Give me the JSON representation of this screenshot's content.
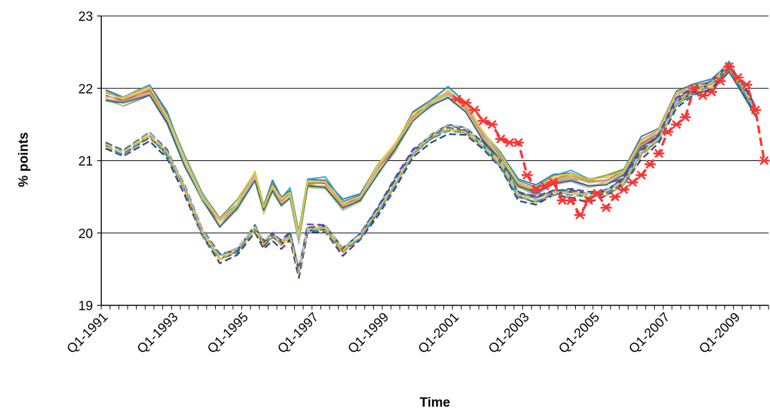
{
  "chart_data": {
    "type": "line",
    "title": "",
    "xlabel": "Time",
    "ylabel": "% points",
    "ylim": [
      19,
      23
    ],
    "yticks": [
      19,
      20,
      21,
      22,
      23
    ],
    "grid": "horizontal",
    "legend": "none",
    "x_tick_labels": [
      "Q1-1991",
      "Q1-1993",
      "Q1-1995",
      "Q1-1997",
      "Q1-1999",
      "Q1-2001",
      "Q1-2003",
      "Q1-2005",
      "Q1-2007",
      "Q1-2009"
    ],
    "x_first_quarter": "Q1-1991",
    "x_last_quarter": "Q4-2009",
    "series": [
      {
        "style": "dashed",
        "color": "#ff3333",
        "markers": "asterisk",
        "points": [
          [
            "Q1-2001",
            21.85
          ],
          [
            "Q2-2001",
            21.8
          ],
          [
            "Q3-2001",
            21.7
          ],
          [
            "Q4-2001",
            21.55
          ],
          [
            "Q1-2002",
            21.5
          ],
          [
            "Q2-2002",
            21.3
          ],
          [
            "Q3-2002",
            21.25
          ],
          [
            "Q4-2002",
            21.25
          ],
          [
            "Q1-2003",
            20.8
          ],
          [
            "Q2-2003",
            20.6
          ],
          [
            "Q3-2003",
            20.65
          ],
          [
            "Q4-2003",
            20.7
          ],
          [
            "Q1-2004",
            20.45
          ],
          [
            "Q2-2004",
            20.45
          ],
          [
            "Q3-2004",
            20.25
          ],
          [
            "Q4-2004",
            20.45
          ],
          [
            "Q1-2005",
            20.55
          ],
          [
            "Q2-2005",
            20.35
          ],
          [
            "Q3-2005",
            20.5
          ],
          [
            "Q4-2005",
            20.6
          ],
          [
            "Q1-2006",
            20.7
          ],
          [
            "Q2-2006",
            20.8
          ],
          [
            "Q3-2006",
            20.95
          ],
          [
            "Q4-2006",
            21.1
          ],
          [
            "Q1-2007",
            21.4
          ],
          [
            "Q2-2007",
            21.5
          ],
          [
            "Q3-2007",
            21.6
          ],
          [
            "Q4-2007",
            22.0
          ],
          [
            "Q1-2008",
            21.9
          ],
          [
            "Q2-2008",
            21.95
          ],
          [
            "Q3-2008",
            22.1
          ],
          [
            "Q4-2008",
            22.3
          ],
          [
            "Q1-2009",
            22.15
          ],
          [
            "Q2-2009",
            22.05
          ],
          [
            "Q3-2009",
            21.7
          ],
          [
            "Q4-2009",
            21.0
          ]
        ]
      }
    ],
    "ensemble_bands": [
      {
        "color_set": [
          "#3a6fb5",
          "#b5413a",
          "#8fb03a",
          "#6a3aa5",
          "#2aa0c0",
          "#e88a2a",
          "#8fa8d8",
          "#e89a9a",
          "#b8d88a",
          "#2e6b6b",
          "#c0c0c0",
          "#f2c81a"
        ],
        "count": 12,
        "style": "solid",
        "knots": [
          [
            "Q1-1991",
            21.9
          ],
          [
            "Q3-1991",
            21.85
          ],
          [
            "Q2-1992",
            22.0
          ],
          [
            "Q4-1992",
            21.6
          ],
          [
            "Q2-1993",
            21.0
          ],
          [
            "Q4-1993",
            20.5
          ],
          [
            "Q2-1994",
            20.15
          ],
          [
            "Q4-1994",
            20.4
          ],
          [
            "Q2-1995",
            20.8
          ],
          [
            "Q3-1995",
            20.35
          ],
          [
            "Q4-1995",
            20.65
          ],
          [
            "Q1-1996",
            20.45
          ],
          [
            "Q2-1996",
            20.55
          ],
          [
            "Q3-1996",
            19.95
          ],
          [
            "Q4-1996",
            20.7
          ],
          [
            "Q2-1997",
            20.7
          ],
          [
            "Q4-1997",
            20.4
          ],
          [
            "Q2-1998",
            20.5
          ],
          [
            "Q4-1998",
            20.9
          ],
          [
            "Q2-1999",
            21.2
          ],
          [
            "Q4-1999",
            21.6
          ],
          [
            "Q2-2000",
            21.8
          ],
          [
            "Q4-2000",
            21.95
          ],
          [
            "Q2-2001",
            21.75
          ],
          [
            "Q4-2001",
            21.35
          ],
          [
            "Q2-2002",
            21.05
          ],
          [
            "Q4-2002",
            20.7
          ],
          [
            "Q2-2003",
            20.6
          ],
          [
            "Q4-2003",
            20.75
          ],
          [
            "Q2-2004",
            20.8
          ],
          [
            "Q4-2004",
            20.7
          ],
          [
            "Q2-2005",
            20.75
          ],
          [
            "Q4-2005",
            20.85
          ],
          [
            "Q2-2006",
            21.25
          ],
          [
            "Q4-2006",
            21.4
          ],
          [
            "Q2-2007",
            21.9
          ],
          [
            "Q4-2007",
            22.0
          ],
          [
            "Q2-2008",
            22.05
          ],
          [
            "Q4-2008",
            22.3
          ],
          [
            "Q2-2009",
            21.9
          ],
          [
            "Q3-2009",
            21.7
          ]
        ]
      },
      {
        "color_set": [
          "#1f3d8a",
          "#6b1f1f",
          "#e88a2a",
          "#2aa0c0",
          "#3a6fb5",
          "#8fb03a",
          "#f2c81a",
          "#6a3aa5",
          "#2e6b6b",
          "#c0c0c0"
        ],
        "count": 10,
        "style": "dashed",
        "knots": [
          [
            "Q1-1991",
            21.2
          ],
          [
            "Q3-1991",
            21.1
          ],
          [
            "Q2-1992",
            21.35
          ],
          [
            "Q4-1992",
            21.1
          ],
          [
            "Q2-1993",
            20.6
          ],
          [
            "Q4-1993",
            20.0
          ],
          [
            "Q2-1994",
            19.65
          ],
          [
            "Q4-1994",
            19.75
          ],
          [
            "Q2-1995",
            20.05
          ],
          [
            "Q3-1995",
            19.85
          ],
          [
            "Q4-1995",
            19.95
          ],
          [
            "Q1-1996",
            19.85
          ],
          [
            "Q2-1996",
            19.95
          ],
          [
            "Q3-1996",
            19.45
          ],
          [
            "Q4-1996",
            20.05
          ],
          [
            "Q2-1997",
            20.05
          ],
          [
            "Q4-1997",
            19.75
          ],
          [
            "Q2-1998",
            19.95
          ],
          [
            "Q4-1998",
            20.3
          ],
          [
            "Q2-1999",
            20.7
          ],
          [
            "Q4-1999",
            21.1
          ],
          [
            "Q2-2000",
            21.3
          ],
          [
            "Q4-2000",
            21.45
          ],
          [
            "Q2-2001",
            21.4
          ],
          [
            "Q4-2001",
            21.2
          ],
          [
            "Q2-2002",
            20.95
          ],
          [
            "Q4-2002",
            20.5
          ],
          [
            "Q2-2003",
            20.45
          ],
          [
            "Q4-2003",
            20.55
          ],
          [
            "Q2-2004",
            20.55
          ],
          [
            "Q4-2004",
            20.5
          ],
          [
            "Q2-2005",
            20.55
          ],
          [
            "Q4-2005",
            20.7
          ],
          [
            "Q2-2006",
            21.1
          ],
          [
            "Q4-2006",
            21.3
          ],
          [
            "Q2-2007",
            21.8
          ],
          [
            "Q4-2007",
            21.95
          ],
          [
            "Q2-2008",
            22.05
          ],
          [
            "Q4-2008",
            22.3
          ],
          [
            "Q2-2009",
            21.9
          ],
          [
            "Q3-2009",
            21.7
          ]
        ]
      }
    ]
  }
}
